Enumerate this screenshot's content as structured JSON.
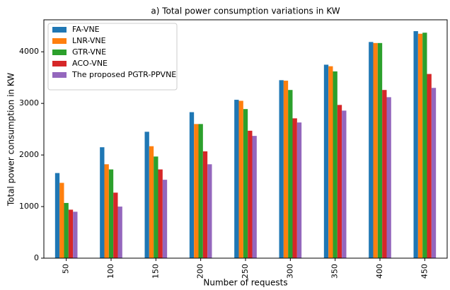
{
  "chart_data": {
    "type": "bar",
    "title": "a) Total power consumption variations in KW",
    "x_label": "Number of requests",
    "y_label": "Total power consumption in KW",
    "categories": [
      "50",
      "100",
      "150",
      "200",
      "250",
      "300",
      "350",
      "400",
      "450"
    ],
    "series": [
      {
        "name": "FA-VNE",
        "color": "#1f77b4",
        "values": [
          1650,
          2150,
          2450,
          2830,
          3070,
          3450,
          3750,
          4190,
          4400
        ]
      },
      {
        "name": "LNR-VNE",
        "color": "#ff7f0e",
        "values": [
          1460,
          1820,
          2170,
          2600,
          3050,
          3440,
          3720,
          4170,
          4350
        ]
      },
      {
        "name": "GTR-VNE",
        "color": "#2ca02c",
        "values": [
          1070,
          1720,
          1970,
          2600,
          2890,
          3260,
          3620,
          4170,
          4370
        ]
      },
      {
        "name": "ACO-VNE",
        "color": "#d62728",
        "values": [
          940,
          1270,
          1720,
          2070,
          2470,
          2710,
          2970,
          3260,
          3570
        ]
      },
      {
        "name": "The proposed PGTR-PPVNE",
        "color": "#9467bd",
        "values": [
          900,
          1000,
          1520,
          1820,
          2370,
          2630,
          2860,
          3120,
          3300
        ]
      }
    ],
    "ylim": [
      0,
      4620
    ],
    "yticks": [
      0,
      1000,
      2000,
      3000,
      4000
    ],
    "legend": "upper left"
  }
}
